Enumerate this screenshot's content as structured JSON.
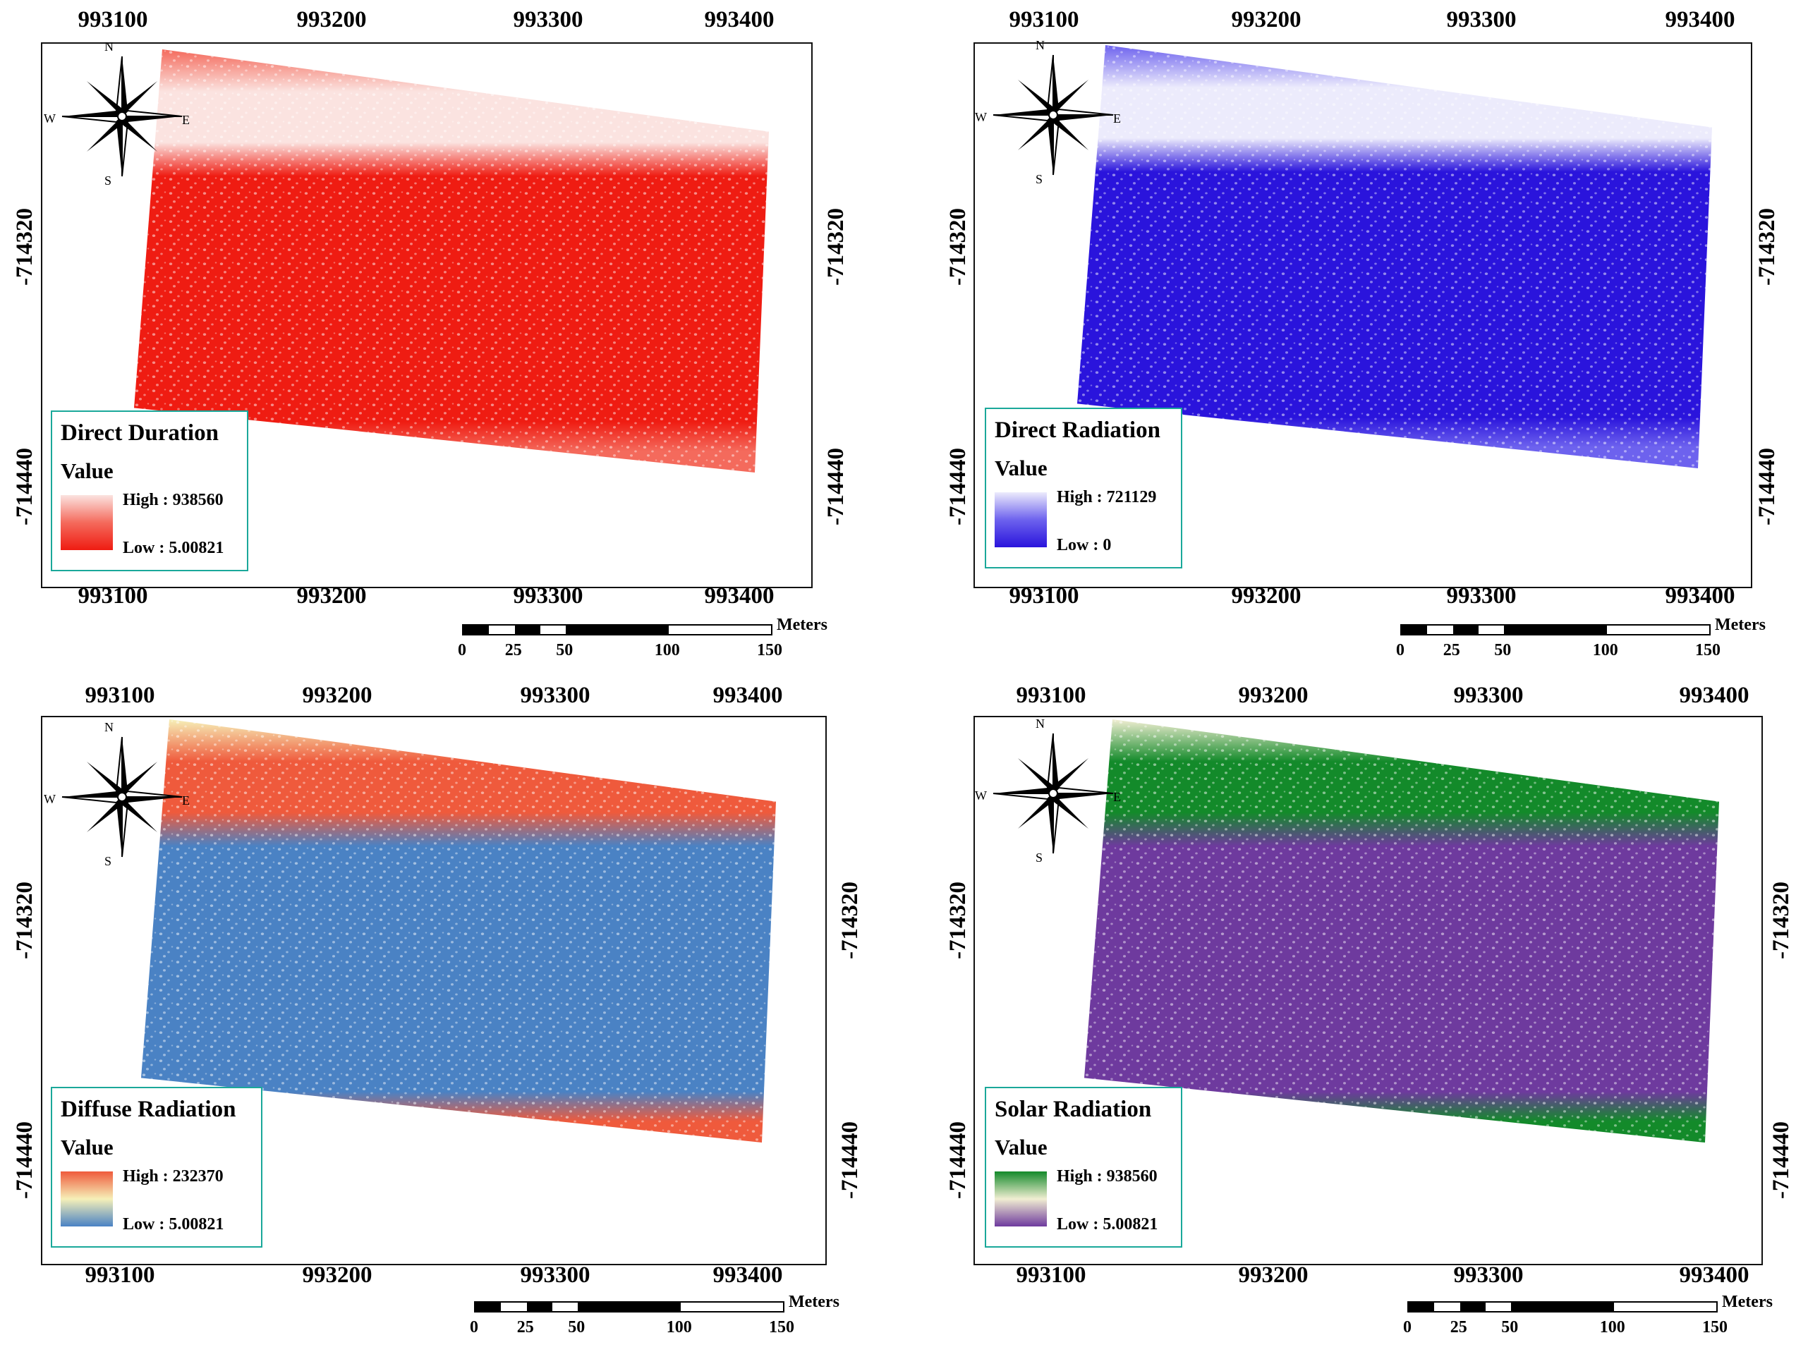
{
  "x_ticks": [
    "993100",
    "993200",
    "993300",
    "993400"
  ],
  "y_ticks": [
    "-714320",
    "-714440"
  ],
  "compass": {
    "n": "N",
    "s": "S",
    "e": "E",
    "w": "W"
  },
  "scale": {
    "unit": "Meters",
    "ticks": [
      "0",
      "25",
      "50",
      "100",
      "150"
    ]
  },
  "panels": [
    {
      "title": "Direct Duration",
      "value_label": "Value",
      "high": "High : 938560",
      "low": "Low : 5.00821",
      "colors": {
        "high": "#fbe3e0",
        "mid": "#f46a5c",
        "low": "#ef1c12"
      }
    },
    {
      "title": "Direct Radiation",
      "value_label": "Value",
      "high": "High : 721129",
      "low": "Low : 0",
      "colors": {
        "high": "#ecebfc",
        "mid": "#6d62ee",
        "low": "#2a14dc"
      }
    },
    {
      "title": "Diffuse Radiation",
      "value_label": "Value",
      "high": "High : 232370",
      "low": "Low : 5.00821",
      "colors": {
        "high": "#ef5a3c",
        "mid": "#f6f0b8",
        "low": "#4a82c4"
      }
    },
    {
      "title": "Solar Radiation",
      "value_label": "Value",
      "high": "High : 938560",
      "low": "Low : 5.00821",
      "colors": {
        "high": "#138a2a",
        "mid": "#f1eed2",
        "low": "#6e3a9e"
      }
    }
  ]
}
